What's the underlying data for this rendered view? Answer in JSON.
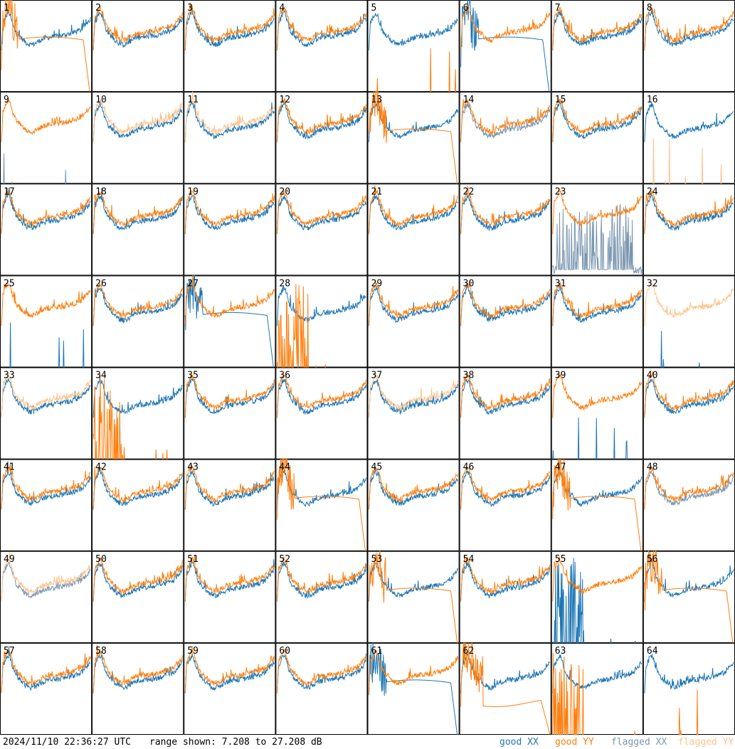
{
  "chart_data": {
    "type": "line",
    "panel_count": 64,
    "panel_labels": [
      "1",
      "2",
      "3",
      "4",
      "5",
      "6",
      "7",
      "8",
      "9",
      "10",
      "11",
      "12",
      "13",
      "14",
      "15",
      "16",
      "17",
      "18",
      "19",
      "20",
      "21",
      "22",
      "23",
      "24",
      "25",
      "26",
      "27",
      "28",
      "29",
      "30",
      "31",
      "32",
      "33",
      "34",
      "35",
      "36",
      "37",
      "38",
      "39",
      "40",
      "41",
      "42",
      "43",
      "44",
      "45",
      "46",
      "47",
      "48",
      "49",
      "50",
      "51",
      "52",
      "53",
      "54",
      "55",
      "56",
      "57",
      "58",
      "59",
      "60",
      "61",
      "62",
      "63",
      "64"
    ],
    "ylim": [
      7.208,
      27.208
    ],
    "series_styles": [
      {
        "name": "good XX",
        "color": "#1f77b4"
      },
      {
        "name": "good YY",
        "color": "#ff7f0e"
      },
      {
        "name": "flagged XX",
        "color": "#7a96b0"
      },
      {
        "name": "flagged YY",
        "color": "#ffc38c"
      }
    ],
    "panels": [
      {
        "xx": "good",
        "yy": "good",
        "shape": "rolloff"
      },
      {
        "xx": "good",
        "yy": "good",
        "shape": "normal"
      },
      {
        "xx": "good",
        "yy": "good",
        "shape": "normal"
      },
      {
        "xx": "good",
        "yy": "good",
        "shape": "normal"
      },
      {
        "xx": "good",
        "yy": "good",
        "shape": "yy_dead"
      },
      {
        "xx": "good",
        "yy": "good",
        "shape": "xx_rolloff"
      },
      {
        "xx": "good",
        "yy": "good",
        "shape": "normal"
      },
      {
        "xx": "good",
        "yy": "good",
        "shape": "normal"
      },
      {
        "xx": "flagged",
        "yy": "good",
        "shape": "xx_dead"
      },
      {
        "xx": "good",
        "yy": "flagged",
        "shape": "normal"
      },
      {
        "xx": "good",
        "yy": "flagged",
        "shape": "normal"
      },
      {
        "xx": "good",
        "yy": "good",
        "shape": "normal"
      },
      {
        "xx": "good",
        "yy": "good",
        "shape": "rolloff"
      },
      {
        "xx": "flagged",
        "yy": "good",
        "shape": "normal"
      },
      {
        "xx": "good",
        "yy": "good",
        "shape": "normal"
      },
      {
        "xx": "good",
        "yy": "flagged",
        "shape": "yy_dead"
      },
      {
        "xx": "good",
        "yy": "good",
        "shape": "normal"
      },
      {
        "xx": "good",
        "yy": "good",
        "shape": "normal"
      },
      {
        "xx": "good",
        "yy": "good",
        "shape": "normal"
      },
      {
        "xx": "good",
        "yy": "good",
        "shape": "normal"
      },
      {
        "xx": "good",
        "yy": "good",
        "shape": "normal"
      },
      {
        "xx": "good",
        "yy": "good",
        "shape": "normal"
      },
      {
        "xx": "flagged",
        "yy": "good",
        "shape": "xx_noisy"
      },
      {
        "xx": "good",
        "yy": "good",
        "shape": "normal"
      },
      {
        "xx": "good",
        "yy": "good",
        "shape": "xx_dead"
      },
      {
        "xx": "good",
        "yy": "good",
        "shape": "normal"
      },
      {
        "xx": "good",
        "yy": "good",
        "shape": "xx_rolloff"
      },
      {
        "xx": "good",
        "yy": "good",
        "shape": "yy_spiky_dead"
      },
      {
        "xx": "good",
        "yy": "good",
        "shape": "normal"
      },
      {
        "xx": "good",
        "yy": "good",
        "shape": "normal"
      },
      {
        "xx": "good",
        "yy": "good",
        "shape": "normal"
      },
      {
        "xx": "good",
        "yy": "flagged",
        "shape": "xx_dead"
      },
      {
        "xx": "good",
        "yy": "flagged",
        "shape": "normal"
      },
      {
        "xx": "good",
        "yy": "good",
        "shape": "yy_spiky_dead"
      },
      {
        "xx": "good",
        "yy": "good",
        "shape": "normal"
      },
      {
        "xx": "good",
        "yy": "good",
        "shape": "normal"
      },
      {
        "xx": "good",
        "yy": "flagged",
        "shape": "normal"
      },
      {
        "xx": "good",
        "yy": "good",
        "shape": "normal"
      },
      {
        "xx": "good",
        "yy": "good",
        "shape": "xx_dead"
      },
      {
        "xx": "good",
        "yy": "good",
        "shape": "normal"
      },
      {
        "xx": "good",
        "yy": "good",
        "shape": "normal"
      },
      {
        "xx": "good",
        "yy": "good",
        "shape": "normal"
      },
      {
        "xx": "good",
        "yy": "good",
        "shape": "normal"
      },
      {
        "xx": "good",
        "yy": "good",
        "shape": "rolloff"
      },
      {
        "xx": "good",
        "yy": "good",
        "shape": "normal"
      },
      {
        "xx": "good",
        "yy": "good",
        "shape": "normal"
      },
      {
        "xx": "good",
        "yy": "good",
        "shape": "rolloff"
      },
      {
        "xx": "flagged",
        "yy": "good",
        "shape": "normal"
      },
      {
        "xx": "flagged",
        "yy": "flagged",
        "shape": "normal"
      },
      {
        "xx": "good",
        "yy": "good",
        "shape": "normal"
      },
      {
        "xx": "good",
        "yy": "good",
        "shape": "normal"
      },
      {
        "xx": "good",
        "yy": "good",
        "shape": "normal"
      },
      {
        "xx": "good",
        "yy": "good",
        "shape": "yy_rolloff"
      },
      {
        "xx": "good",
        "yy": "good",
        "shape": "normal"
      },
      {
        "xx": "good",
        "yy": "good",
        "shape": "xx_spiky_dead"
      },
      {
        "xx": "good",
        "yy": "good",
        "shape": "rolloff"
      },
      {
        "xx": "good",
        "yy": "good",
        "shape": "normal"
      },
      {
        "xx": "good",
        "yy": "good",
        "shape": "normal"
      },
      {
        "xx": "good",
        "yy": "good",
        "shape": "normal"
      },
      {
        "xx": "good",
        "yy": "good",
        "shape": "normal"
      },
      {
        "xx": "good",
        "yy": "good",
        "shape": "xx_rolloff"
      },
      {
        "xx": "good",
        "yy": "good",
        "shape": "yy_low"
      },
      {
        "xx": "good",
        "yy": "good",
        "shape": "yy_spiky_dead"
      },
      {
        "xx": "good",
        "yy": "good",
        "shape": "yy_dead"
      }
    ]
  },
  "footer": {
    "timestamp": "2024/11/10 22:36:27 UTC",
    "range_text": "range shown: 7.208 to 27.208 dB",
    "legend": [
      "good XX",
      "good YY",
      "flagged XX",
      "flagged YY"
    ]
  }
}
